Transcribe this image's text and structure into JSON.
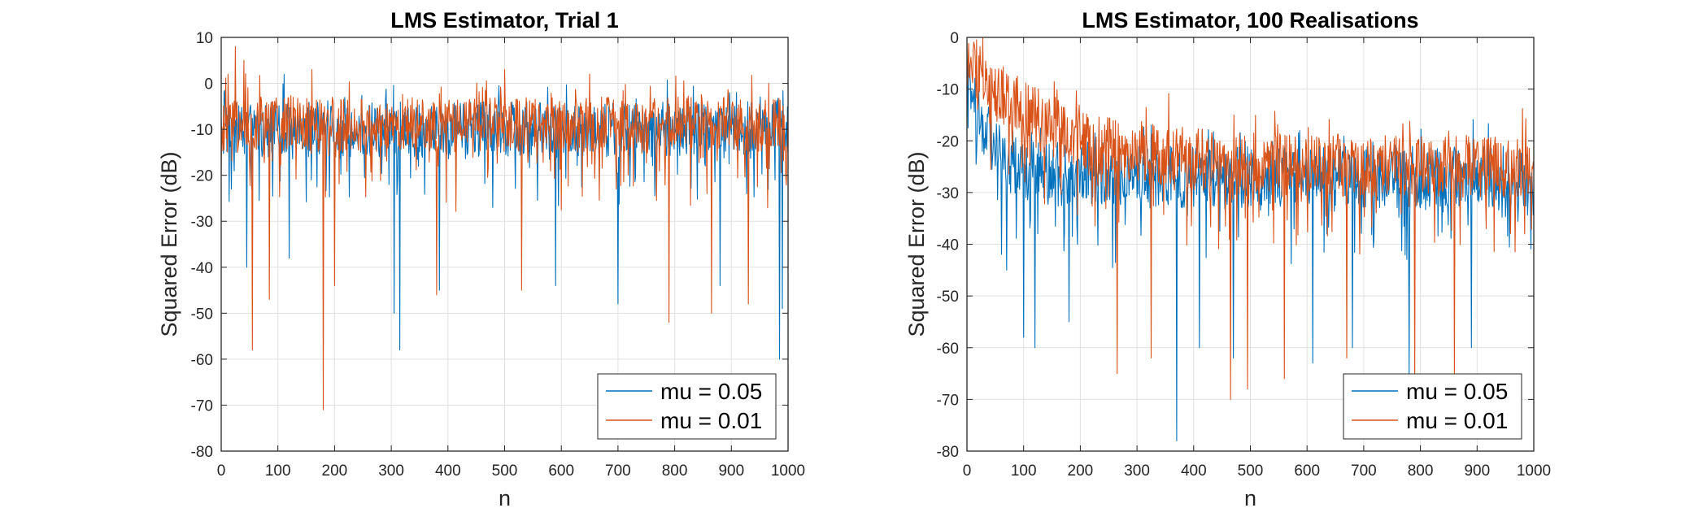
{
  "chart_data": [
    {
      "type": "line",
      "title": "LMS Estimator, Trial 1",
      "xlabel": "n",
      "ylabel": "Squared Error (dB)",
      "xlim": [
        0,
        1000
      ],
      "ylim": [
        -80,
        10
      ],
      "xticks": [
        0,
        100,
        200,
        300,
        400,
        500,
        600,
        700,
        800,
        900,
        1000
      ],
      "yticks": [
        -80,
        -70,
        -60,
        -50,
        -40,
        -30,
        -20,
        -10,
        0,
        10
      ],
      "grid": true,
      "legend_position": "bottom-right",
      "series": [
        {
          "name": "mu = 0.05",
          "color": "#0072BD",
          "baseline": -10,
          "spread": 6,
          "dips": [
            [
              45,
              -40
            ],
            [
              120,
              -38
            ],
            [
              305,
              -50
            ],
            [
              315,
              -58
            ],
            [
              385,
              -45
            ],
            [
              590,
              -44
            ],
            [
              700,
              -48
            ],
            [
              880,
              -44
            ],
            [
              985,
              -60
            ],
            [
              990,
              -49
            ]
          ]
        },
        {
          "name": "mu = 0.01",
          "color": "#D95319",
          "baseline": -9,
          "spread": 6,
          "dips": [
            [
              55,
              -58
            ],
            [
              85,
              -47
            ],
            [
              180,
              -71
            ],
            [
              200,
              -44
            ],
            [
              380,
              -46
            ],
            [
              530,
              -45
            ],
            [
              790,
              -52
            ],
            [
              865,
              -50
            ],
            [
              930,
              -48
            ]
          ],
          "peaks": [
            [
              12,
              2
            ],
            [
              25,
              8
            ],
            [
              40,
              5
            ],
            [
              160,
              3
            ],
            [
              500,
              3
            ],
            [
              650,
              2
            ]
          ]
        }
      ]
    },
    {
      "type": "line",
      "title": "LMS Estimator, 100 Realisations",
      "xlabel": "n",
      "ylabel": "Squared Error (dB)",
      "xlim": [
        0,
        1000
      ],
      "ylim": [
        -80,
        0
      ],
      "xticks": [
        0,
        100,
        200,
        300,
        400,
        500,
        600,
        700,
        800,
        900,
        1000
      ],
      "yticks": [
        -80,
        -70,
        -60,
        -50,
        -40,
        -30,
        -20,
        -10,
        0
      ],
      "grid": true,
      "legend_position": "bottom-right",
      "series": [
        {
          "name": "mu = 0.05",
          "color": "#0072BD",
          "start": -8,
          "baseline": -27,
          "tau": 40,
          "spread": 6,
          "dips": [
            [
              70,
              -45
            ],
            [
              100,
              -58
            ],
            [
              120,
              -60
            ],
            [
              180,
              -55
            ],
            [
              370,
              -78
            ],
            [
              410,
              -60
            ],
            [
              470,
              -62
            ],
            [
              610,
              -63
            ],
            [
              680,
              -60
            ],
            [
              780,
              -65
            ],
            [
              890,
              -60
            ]
          ]
        },
        {
          "name": "mu = 0.01",
          "color": "#D95319",
          "start": -4,
          "baseline": -25,
          "tau": 150,
          "spread": 6,
          "dips": [
            [
              265,
              -65
            ],
            [
              325,
              -62
            ],
            [
              465,
              -70
            ],
            [
              495,
              -68
            ],
            [
              560,
              -66
            ],
            [
              670,
              -62
            ],
            [
              790,
              -68
            ],
            [
              860,
              -66
            ]
          ]
        }
      ]
    }
  ]
}
